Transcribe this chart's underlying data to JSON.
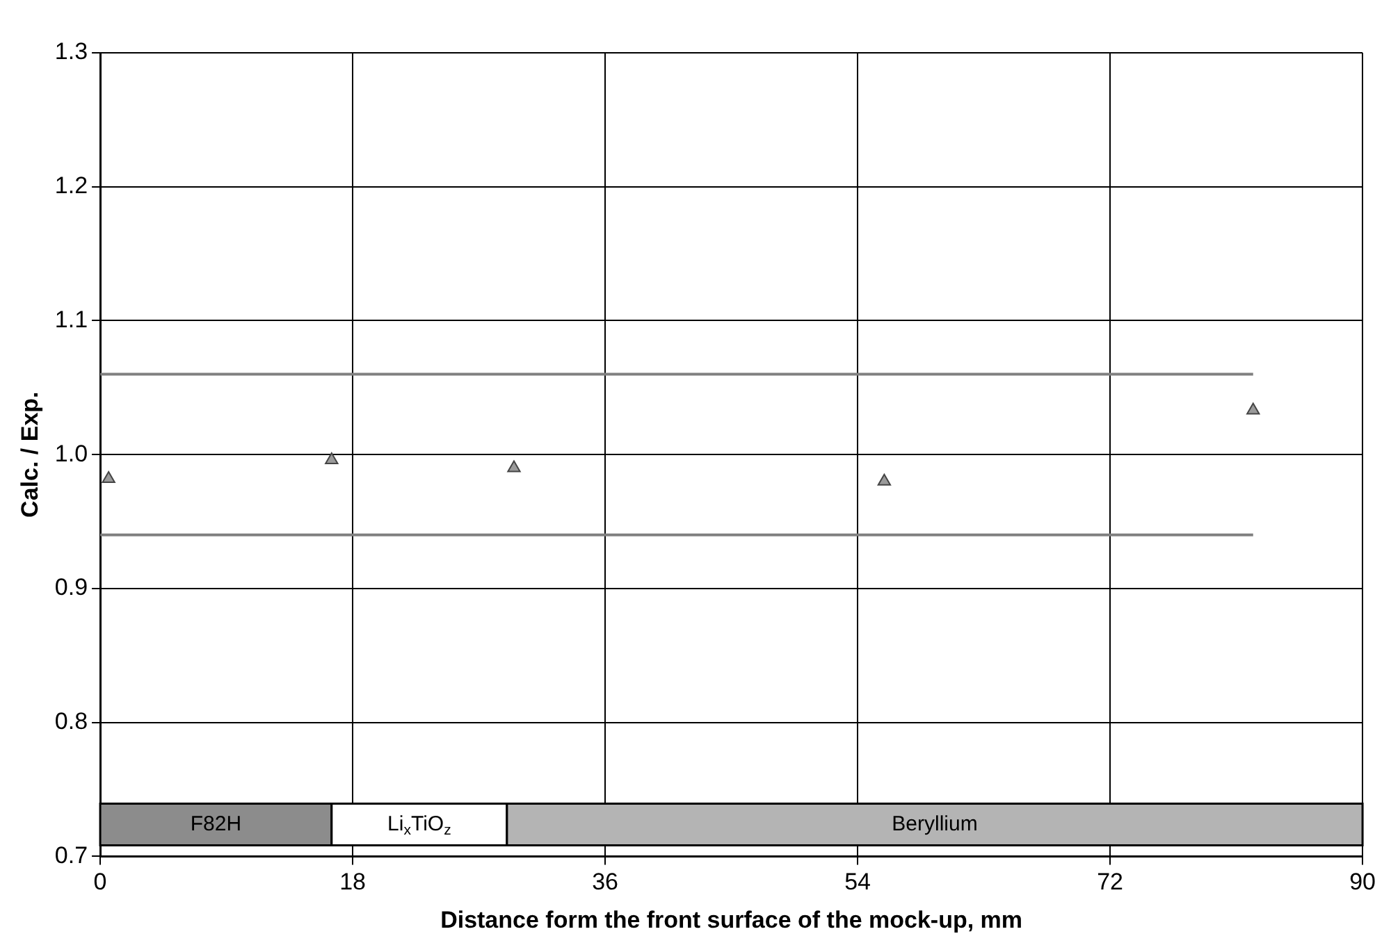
{
  "chart_data": {
    "type": "scatter",
    "xlabel": "Distance form the front surface of the mock-up, mm",
    "ylabel": "Calc. / Exp.",
    "xlim": [
      0,
      90
    ],
    "xticks": [
      0,
      18,
      36,
      54,
      72,
      90
    ],
    "ylim": [
      0.7,
      1.3
    ],
    "yticks": [
      0.7,
      0.8,
      0.9,
      {
        "value": 1,
        "label": "1.0"
      },
      1.1,
      1.2,
      1.3
    ],
    "grid": true,
    "marker": "triangle",
    "series": [
      {
        "color": "#9a9a9a",
        "x": [
          0.6,
          16.5,
          29.5,
          55.9,
          82.2
        ],
        "values": [
          0.982,
          0.996,
          0.99,
          0.98,
          1.033
        ]
      },
      {
        "type": "line",
        "color": "#808080",
        "marker": "none",
        "x": [
          0,
          82.2
        ],
        "values": [
          1.06,
          1.06
        ]
      },
      {
        "type": "line",
        "color": "#808080",
        "marker": "none",
        "x": [
          0,
          82.2
        ],
        "values": [
          0.94,
          0.94
        ]
      }
    ],
    "bands": [
      {
        "axis": "x",
        "from": 0,
        "to": 16.5,
        "label": "F82H",
        "color": "#8c8c8c"
      },
      {
        "axis": "x",
        "from": 16.5,
        "to": 29,
        "label": "Li$_{x}$TiO$_{z}$",
        "color": "#ffffff"
      },
      {
        "axis": "x",
        "from": 29,
        "to": 90,
        "label": "Beryllium",
        "color": "#b4b4b4"
      }
    ]
  }
}
